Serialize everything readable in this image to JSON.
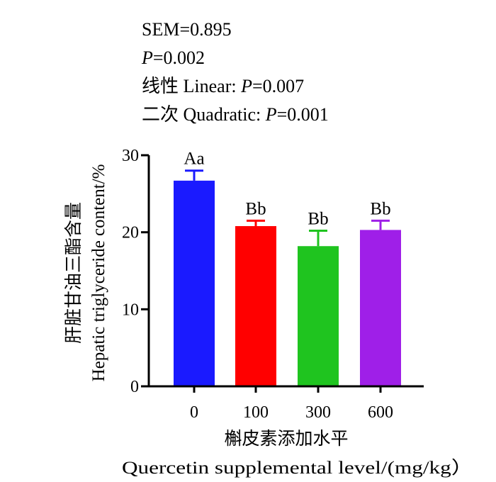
{
  "stats": {
    "sem": "SEM=0.895",
    "p_symbol": "P",
    "p_value": "=0.002",
    "linear_cn": "线性",
    "linear_en": "Linear: ",
    "linear_value": "=0.007",
    "quadratic_cn": "二次",
    "quadratic_en": "Quadratic: ",
    "quadratic_value": "=0.001"
  },
  "chart_data": {
    "type": "bar",
    "categories": [
      "0",
      "100",
      "300",
      "600"
    ],
    "values": [
      26.7,
      20.8,
      18.2,
      20.3
    ],
    "errors": [
      1.3,
      0.7,
      2.0,
      1.2
    ],
    "colors": [
      "#1a1aff",
      "#ff0000",
      "#1fc41f",
      "#9f1fe8"
    ],
    "significance": [
      "Aa",
      "Bb",
      "Bb",
      "Bb"
    ],
    "ylim": [
      0,
      30
    ],
    "yticks": [
      "0",
      "10",
      "20",
      "30"
    ],
    "ylabel_cn": "肝脏甘油三酯含量",
    "ylabel_en": "Hepatic triglyceride content/%",
    "xlabel_cn": "槲皮素添加水平",
    "xlabel_en": "Quercetin supplemental level/(mg/kg）",
    "grid": false,
    "legend": "none"
  }
}
